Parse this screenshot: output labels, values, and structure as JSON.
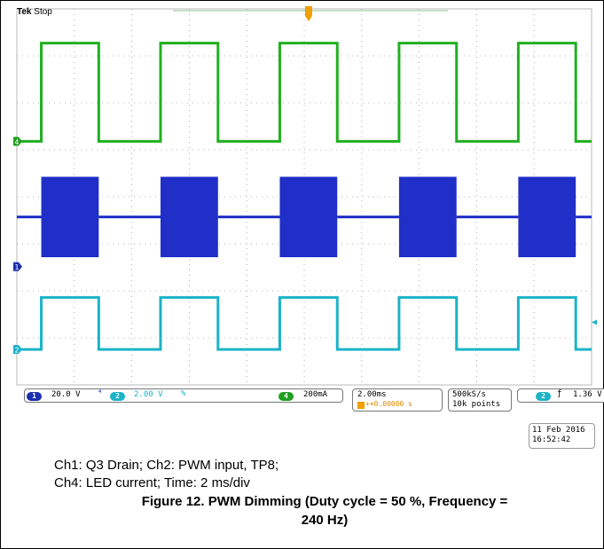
{
  "scope": {
    "brand": "Tek",
    "state": "Stop",
    "ch1": {
      "num": "1",
      "scale": "20.0 V",
      "color": "#1c2fb0"
    },
    "ch2": {
      "num": "2",
      "scale": "2.00 V",
      "color": "#1bb3c8"
    },
    "ch4": {
      "num": "4",
      "scale": "200mA",
      "color": "#20a020"
    },
    "time_div": "2.00ms",
    "trig_pos": "+▾0.00000 s",
    "sample_rate": "500kS/s",
    "record_len": "10k points",
    "trigger": {
      "source": "2",
      "level": "1.36 V"
    },
    "date": "11 Feb  2016",
    "time": "16:52:42",
    "trigger_marker": "T"
  },
  "caption": {
    "line1": "Ch1: Q3 Drain; Ch2: PWM input, TP8;",
    "line2": "Ch4: LED current; Time: 2 ms/div",
    "figure_line1": "Figure 12. PWM Dimming (Duty cycle = 50 %, Frequency =",
    "figure_line2": "240 Hz)"
  },
  "chart_data": {
    "type": "line",
    "x_unit": "ms",
    "x_range": [
      0,
      20
    ],
    "x_divisions": 10,
    "y_divisions": 8,
    "grid": true,
    "pwm_period_ms": 4.1667,
    "duty_cycle": 0.5,
    "pulses": [
      {
        "start_ms": 0.85,
        "end_ms": 2.85
      },
      {
        "start_ms": 5.0,
        "end_ms": 7.0
      },
      {
        "start_ms": 9.15,
        "end_ms": 11.15
      },
      {
        "start_ms": 13.3,
        "end_ms": 15.3
      },
      {
        "start_ms": 17.45,
        "end_ms": 19.45
      }
    ],
    "series": [
      {
        "channel": "4",
        "low_div": -1.3,
        "high_div": 2.85,
        "color": "#20b020"
      },
      {
        "channel": "1",
        "low_div": -6.2,
        "high_div": -2.8,
        "baseline_div": -4.5,
        "color": "#1f2fc8"
      },
      {
        "channel": "2",
        "low_div": -10.1,
        "high_div": -7.9,
        "color": "#1bb3c8"
      }
    ]
  }
}
